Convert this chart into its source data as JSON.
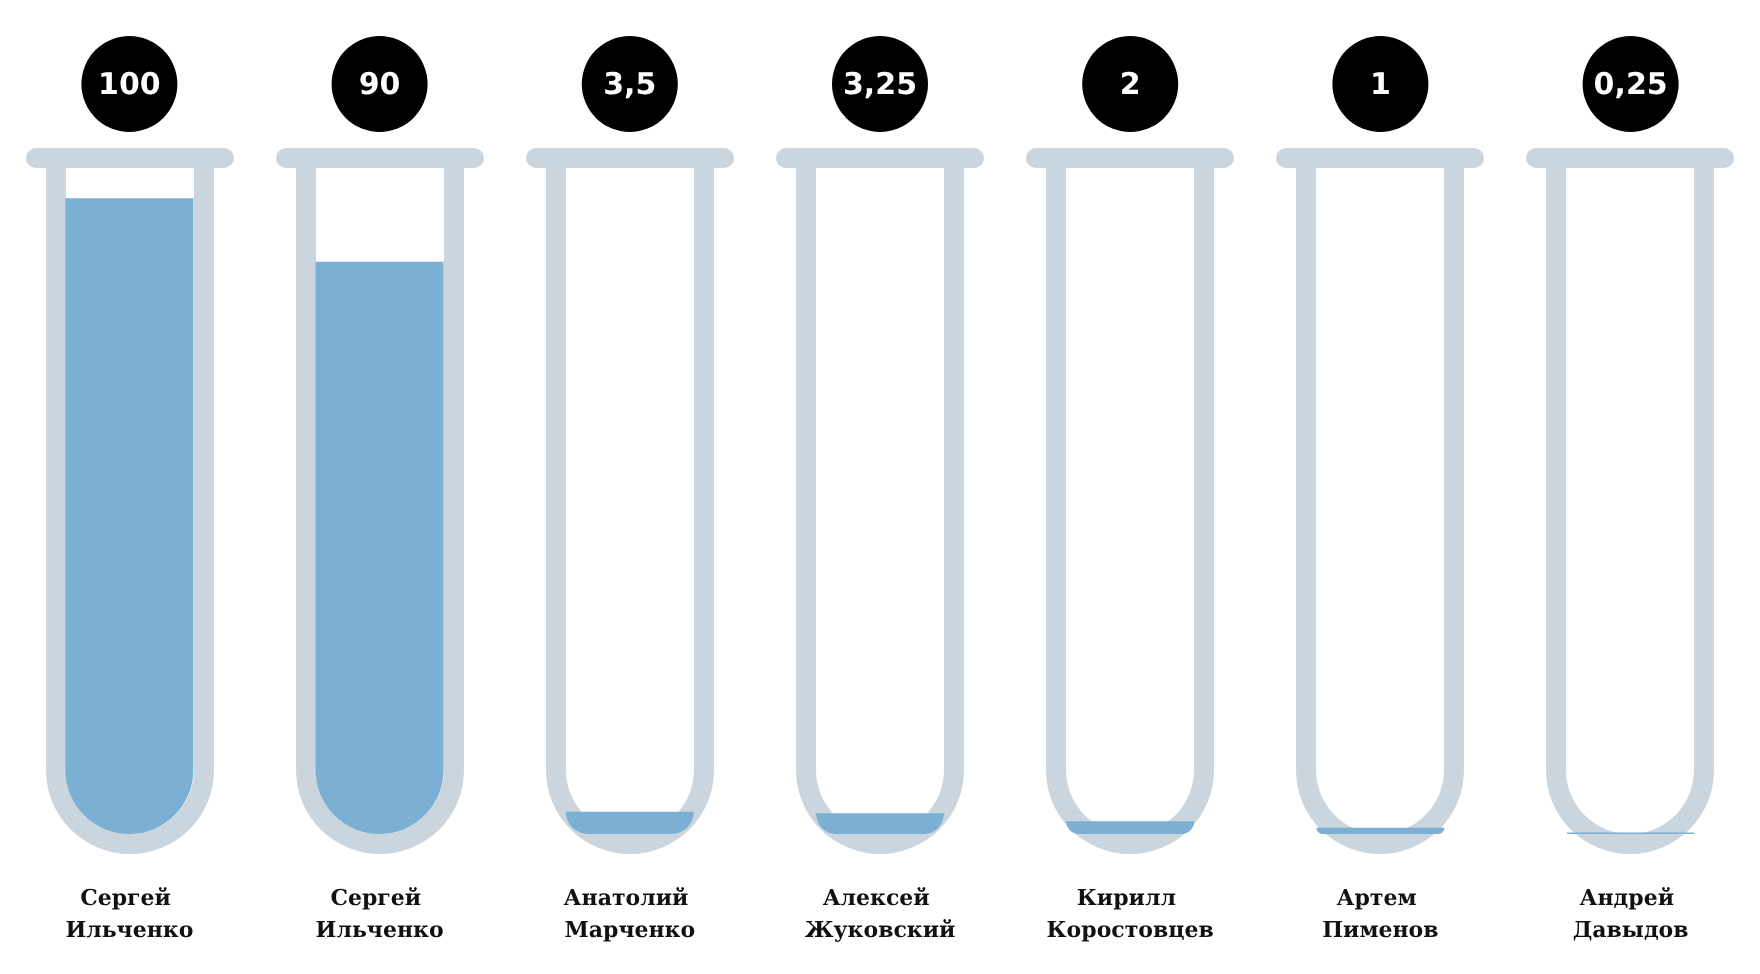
{
  "chart_data": {
    "type": "bar",
    "categories": [
      "Сергей Ильченко",
      "Сергей Ильченко",
      "Анатолий Марченко",
      "Алексей Жуковский",
      "Кирилл Коростовцев",
      "Артем Пименов",
      "Андрей Давыдов"
    ],
    "values": [
      100,
      90,
      3.5,
      3.25,
      2,
      1,
      0.25
    ],
    "value_labels": [
      "100",
      "90",
      "3,5",
      "3,25",
      "2",
      "1",
      "0,25"
    ],
    "color": "#7bafd4"
  }
}
